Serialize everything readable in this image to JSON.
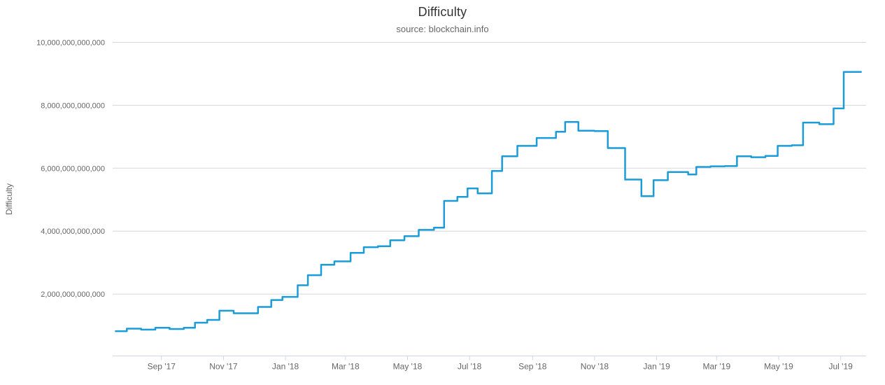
{
  "colors": {
    "background": "#ffffff",
    "line": "#1b9cd8",
    "gridline": "#d8d8d8",
    "axis_line": "#ccd6eb",
    "title_text": "#333333",
    "label_text": "#666666"
  },
  "chart_data": {
    "type": "line",
    "step": "after",
    "title": "Difficulty",
    "subtitle": "source: blockchain.info",
    "ylabel": "Difficulty",
    "xlabel": "",
    "legend": "none",
    "grid": "horizontal-only",
    "y_axis": {
      "min": 0,
      "max": 10000000000000,
      "tick_interval": 2000000000000,
      "ticks": [
        {
          "value": 2000000000000,
          "label": "2,000,000,000,000"
        },
        {
          "value": 4000000000000,
          "label": "4,000,000,000,000"
        },
        {
          "value": 6000000000000,
          "label": "6,000,000,000,000"
        },
        {
          "value": 8000000000000,
          "label": "8,000,000,000,000"
        },
        {
          "value": 10000000000000,
          "label": "10,000,000,000,000"
        }
      ]
    },
    "x_axis": {
      "start": "2017-07-15",
      "end": "2019-07-26",
      "ticks": [
        {
          "date": "2017-09-01",
          "label": "Sep '17"
        },
        {
          "date": "2017-11-01",
          "label": "Nov '17"
        },
        {
          "date": "2018-01-01",
          "label": "Jan '18"
        },
        {
          "date": "2018-03-01",
          "label": "Mar '18"
        },
        {
          "date": "2018-05-01",
          "label": "May '18"
        },
        {
          "date": "2018-07-01",
          "label": "Jul '18"
        },
        {
          "date": "2018-09-01",
          "label": "Sep '18"
        },
        {
          "date": "2018-11-01",
          "label": "Nov '18"
        },
        {
          "date": "2019-01-01",
          "label": "Jan '19"
        },
        {
          "date": "2019-03-01",
          "label": "Mar '19"
        },
        {
          "date": "2019-05-01",
          "label": "May '19"
        },
        {
          "date": "2019-07-01",
          "label": "Jul '19"
        }
      ]
    },
    "series": [
      {
        "name": "Difficulty",
        "color": "#1b9cd8",
        "values_in": "trillions (1e12)",
        "end_date": "2019-07-21",
        "points": [
          [
            "2017-07-18",
            0.82
          ],
          [
            "2017-07-29",
            0.9
          ],
          [
            "2017-08-12",
            0.87
          ],
          [
            "2017-08-26",
            0.93
          ],
          [
            "2017-09-09",
            0.89
          ],
          [
            "2017-09-23",
            0.93
          ],
          [
            "2017-10-04",
            1.09
          ],
          [
            "2017-10-16",
            1.18
          ],
          [
            "2017-10-28",
            1.47
          ],
          [
            "2017-11-11",
            1.39
          ],
          [
            "2017-12-05",
            1.59
          ],
          [
            "2017-12-18",
            1.81
          ],
          [
            "2017-12-29",
            1.91
          ],
          [
            "2018-01-13",
            2.28
          ],
          [
            "2018-01-23",
            2.6
          ],
          [
            "2018-02-05",
            2.93
          ],
          [
            "2018-02-18",
            3.04
          ],
          [
            "2018-03-06",
            3.31
          ],
          [
            "2018-03-19",
            3.49
          ],
          [
            "2018-04-02",
            3.52
          ],
          [
            "2018-04-14",
            3.71
          ],
          [
            "2018-04-28",
            3.84
          ],
          [
            "2018-05-12",
            4.04
          ],
          [
            "2018-05-27",
            4.11
          ],
          [
            "2018-06-06",
            4.96
          ],
          [
            "2018-06-19",
            5.09
          ],
          [
            "2018-06-29",
            5.36
          ],
          [
            "2018-07-09",
            5.2
          ],
          [
            "2018-07-23",
            5.91
          ],
          [
            "2018-08-02",
            6.38
          ],
          [
            "2018-08-17",
            6.71
          ],
          [
            "2018-09-05",
            6.96
          ],
          [
            "2018-09-24",
            7.16
          ],
          [
            "2018-10-03",
            7.47
          ],
          [
            "2018-10-16",
            7.19
          ],
          [
            "2018-11-01",
            7.18
          ],
          [
            "2018-11-14",
            6.64
          ],
          [
            "2018-12-01",
            5.64
          ],
          [
            "2018-12-17",
            5.11
          ],
          [
            "2018-12-29",
            5.62
          ],
          [
            "2019-01-12",
            5.88
          ],
          [
            "2019-02-01",
            5.8
          ],
          [
            "2019-02-09",
            6.04
          ],
          [
            "2019-02-23",
            6.06
          ],
          [
            "2019-03-09",
            6.07
          ],
          [
            "2019-03-21",
            6.38
          ],
          [
            "2019-04-04",
            6.35
          ],
          [
            "2019-04-18",
            6.39
          ],
          [
            "2019-04-30",
            6.71
          ],
          [
            "2019-05-14",
            6.73
          ],
          [
            "2019-05-25",
            7.45
          ],
          [
            "2019-06-10",
            7.4
          ],
          [
            "2019-06-24",
            7.9
          ],
          [
            "2019-07-04",
            9.06
          ]
        ]
      }
    ]
  }
}
